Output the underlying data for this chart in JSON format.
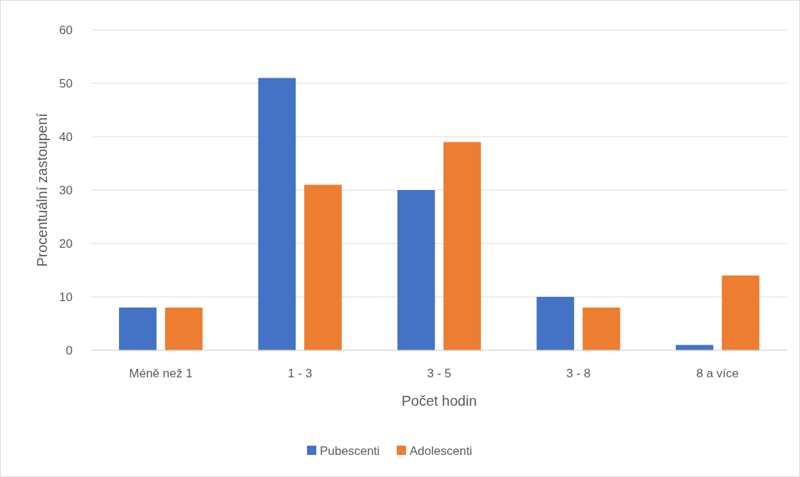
{
  "chart_data": {
    "type": "bar",
    "xlabel": "Počet hodin",
    "ylabel": "Procentuální zastoupení",
    "categories": [
      "Méně než 1",
      "1 - 3",
      "3 - 5",
      "3 - 8",
      "8 a více"
    ],
    "series": [
      {
        "name": "Pubescenti",
        "color": "#4472c4",
        "values": [
          8,
          51,
          30,
          10,
          1
        ]
      },
      {
        "name": "Adolescenti",
        "color": "#ed7d31",
        "values": [
          8,
          31,
          39,
          8,
          14
        ]
      }
    ],
    "ylim": [
      0,
      60
    ],
    "yticks": [
      0,
      10,
      20,
      30,
      40,
      50,
      60
    ],
    "grid": "y",
    "legend": "bottom"
  }
}
